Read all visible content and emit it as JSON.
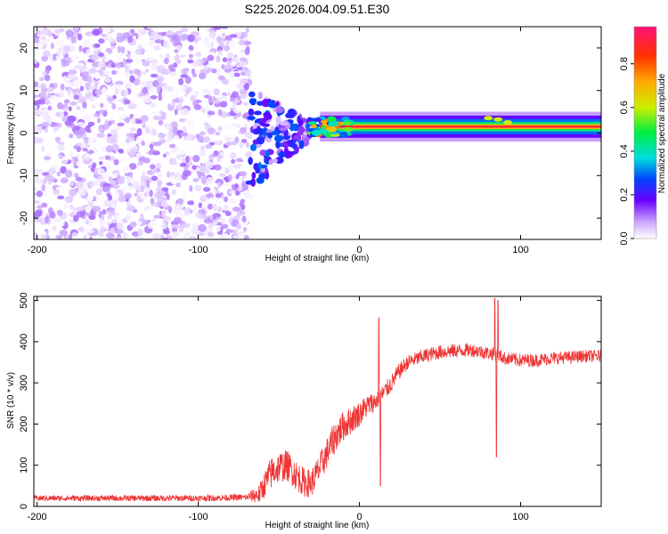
{
  "figure_title": "S225.2026.004.09.51.E30",
  "chart_data": [
    {
      "type": "heatmap",
      "title": "S225.2026.004.09.51.E30",
      "xlabel": "Height of straight line (km)",
      "ylabel": "Frequency (Hz)",
      "xlim": [
        -202,
        150
      ],
      "ylim": [
        -25,
        25
      ],
      "xticks": [
        -200,
        -100,
        0,
        100
      ],
      "xtick_labels": [
        "-200",
        "-100",
        "0",
        "100"
      ],
      "yticks": [
        -20,
        -10,
        0,
        10,
        20
      ],
      "ytick_labels": [
        "-20",
        "-10",
        "0",
        "10",
        "20"
      ],
      "colorbar": {
        "label": "Normalized spectral amplitude",
        "range": [
          0,
          0.97
        ],
        "ticks": [
          0,
          0.2,
          0.4,
          0.6,
          0.8
        ],
        "tick_labels": [
          "0.0",
          "0.2",
          "0.4",
          "0.6",
          "0.8"
        ]
      },
      "regions": [
        {
          "name": "noise",
          "x_range": [
            -202,
            -68
          ],
          "freq_range": [
            -25,
            25
          ],
          "amplitude_range": [
            0.0,
            0.12
          ]
        },
        {
          "name": "transition",
          "x_range": [
            -68,
            -30
          ],
          "freq_range": [
            -10,
            10
          ],
          "amplitude_range": [
            0.05,
            0.3
          ]
        },
        {
          "name": "tone",
          "x_range": [
            -30,
            150
          ],
          "freq_center": 1.5,
          "peak_amplitude": 0.9
        }
      ]
    },
    {
      "type": "line",
      "title": "",
      "xlabel": "Height of straight line (km)",
      "ylabel": "SNR (10 * v/v)",
      "xlim": [
        -202,
        150
      ],
      "ylim": [
        0,
        510
      ],
      "xticks": [
        -200,
        -100,
        0,
        100
      ],
      "xtick_labels": [
        "-200",
        "-100",
        "0",
        "100"
      ],
      "yticks": [
        0,
        100,
        200,
        300,
        400,
        500
      ],
      "ytick_labels": [
        "0",
        "100",
        "200",
        "300",
        "400",
        "500"
      ],
      "color": "#ee3333",
      "series": [
        {
          "name": "SNR",
          "points": [
            [
              -202,
              20
            ],
            [
              -150,
              20
            ],
            [
              -100,
              20
            ],
            [
              -70,
              22
            ],
            [
              -62,
              30
            ],
            [
              -58,
              60
            ],
            [
              -55,
              80
            ],
            [
              -50,
              95
            ],
            [
              -45,
              100
            ],
            [
              -40,
              80
            ],
            [
              -35,
              60
            ],
            [
              -30,
              55
            ],
            [
              -25,
              90
            ],
            [
              -20,
              130
            ],
            [
              -15,
              170
            ],
            [
              -10,
              195
            ],
            [
              -5,
              210
            ],
            [
              0,
              225
            ],
            [
              5,
              245
            ],
            [
              10,
              255
            ],
            [
              15,
              275
            ],
            [
              20,
              300
            ],
            [
              25,
              330
            ],
            [
              30,
              350
            ],
            [
              40,
              365
            ],
            [
              50,
              375
            ],
            [
              60,
              378
            ],
            [
              70,
              380
            ],
            [
              80,
              372
            ],
            [
              85,
              370
            ],
            [
              90,
              360
            ],
            [
              100,
              355
            ],
            [
              110,
              355
            ],
            [
              120,
              360
            ],
            [
              130,
              362
            ],
            [
              140,
              365
            ],
            [
              150,
              365
            ]
          ],
          "noise_amplitude": [
            [
              -202,
              7
            ],
            [
              -70,
              8
            ],
            [
              -55,
              40
            ],
            [
              -30,
              35
            ],
            [
              -15,
              40
            ],
            [
              10,
              25
            ],
            [
              30,
              18
            ],
            [
              150,
              15
            ]
          ],
          "spikes": [
            [
              12,
              458
            ],
            [
              13,
              50
            ],
            [
              84,
              505
            ],
            [
              85,
              120
            ],
            [
              86,
              500
            ]
          ]
        }
      ]
    }
  ]
}
